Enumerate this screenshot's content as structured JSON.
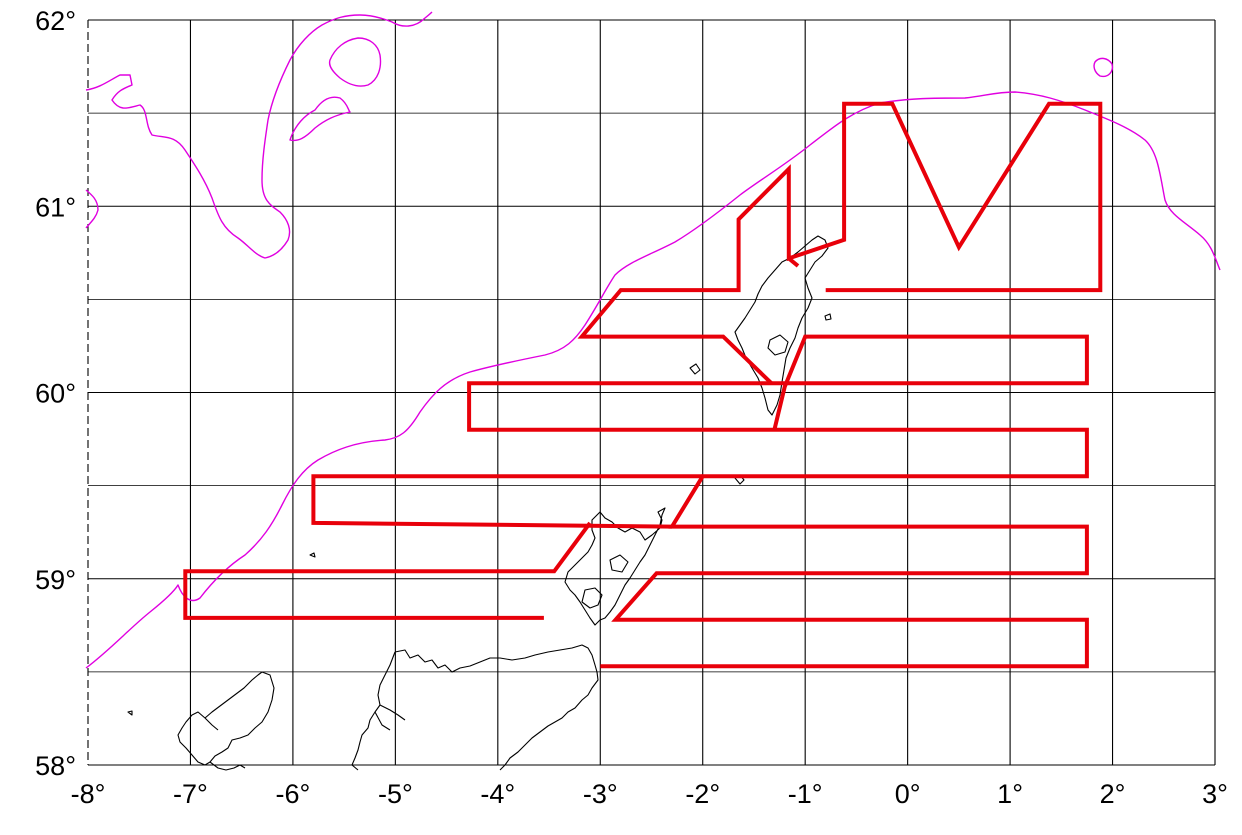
{
  "map": {
    "lon_range": [
      -8,
      3
    ],
    "lat_range": [
      58,
      62
    ],
    "lon_ticks": [
      {
        "value": -8,
        "label": "-8°"
      },
      {
        "value": -7,
        "label": "-7°"
      },
      {
        "value": -6,
        "label": "-6°"
      },
      {
        "value": -5,
        "label": "-5°"
      },
      {
        "value": -4,
        "label": "-4°"
      },
      {
        "value": -3,
        "label": "-3°"
      },
      {
        "value": -2,
        "label": "-2°"
      },
      {
        "value": -1,
        "label": "-1°"
      },
      {
        "value": 0,
        "label": "0°"
      },
      {
        "value": 1,
        "label": "1°"
      },
      {
        "value": 2,
        "label": "2°"
      },
      {
        "value": 3,
        "label": "3°"
      }
    ],
    "lat_ticks": [
      {
        "value": 62,
        "label": "62°"
      },
      {
        "value": 61,
        "label": "61°"
      },
      {
        "value": 60,
        "label": "60°"
      },
      {
        "value": 59,
        "label": "59°"
      },
      {
        "value": 58,
        "label": "58°"
      }
    ],
    "lat_minor": [
      58.5,
      59.5,
      60.5,
      61.5
    ],
    "colors": {
      "survey_track": "#e8000a",
      "shelf_contour": "#e000e0",
      "coastline": "#000000",
      "grid": "#000000"
    },
    "survey_track": [
      [
        -3.0,
        58.53
      ],
      [
        1.75,
        58.53
      ],
      [
        1.75,
        58.78
      ],
      [
        -2.85,
        58.78
      ],
      [
        -2.5,
        59.03
      ],
      [
        1.75,
        59.03
      ],
      [
        1.75,
        59.28
      ],
      [
        -2.3,
        59.28
      ],
      [
        -2.0,
        59.55
      ],
      [
        1.75,
        59.55
      ],
      [
        1.75,
        59.8
      ],
      [
        -1.3,
        59.8
      ],
      [
        -1.18,
        60.03
      ],
      [
        -1.0,
        60.3
      ],
      [
        1.75,
        60.3
      ],
      [
        1.75,
        60.05
      ],
      [
        -4.28,
        60.05
      ],
      [
        -4.28,
        59.8
      ],
      [
        -1.3,
        59.8
      ],
      [
        -2.0,
        59.55
      ],
      [
        -5.8,
        59.55
      ],
      [
        -5.8,
        59.3
      ],
      [
        -2.3,
        59.28
      ],
      [
        -3.0,
        58.53
      ]
    ],
    "survey_track_legs": [
      [
        [
          -3.0,
          58.53
        ],
        [
          1.75,
          58.53
        ],
        [
          1.75,
          58.78
        ],
        [
          -2.85,
          58.78
        ],
        [
          -2.45,
          59.03
        ],
        [
          1.75,
          59.03
        ],
        [
          1.75,
          59.28
        ],
        [
          -2.3,
          59.28
        ],
        [
          -2.0,
          59.55
        ],
        [
          1.75,
          59.55
        ],
        [
          1.75,
          59.8
        ],
        [
          -1.3,
          59.8
        ],
        [
          -1.2,
          60.03
        ],
        [
          -1.0,
          60.3
        ],
        [
          1.75,
          60.3
        ],
        [
          1.75,
          60.05
        ],
        [
          -4.28,
          60.05
        ],
        [
          -4.28,
          59.8
        ],
        [
          -1.3,
          59.8
        ]
      ],
      [
        [
          -2.0,
          59.55
        ],
        [
          -5.8,
          59.55
        ],
        [
          -5.8,
          59.3
        ],
        [
          -2.3,
          59.28
        ]
      ],
      [
        [
          -3.1,
          59.3
        ],
        [
          -3.45,
          59.04
        ],
        [
          -7.05,
          59.04
        ],
        [
          -7.05,
          58.79
        ],
        [
          -3.55,
          58.79
        ]
      ],
      [
        [
          -1.33,
          60.05
        ],
        [
          -1.8,
          60.3
        ],
        [
          -3.18,
          60.3
        ],
        [
          -2.8,
          60.55
        ],
        [
          -1.65,
          60.55
        ],
        [
          -1.65,
          60.93
        ],
        [
          -1.16,
          61.2
        ],
        [
          -1.16,
          60.72
        ],
        [
          -0.62,
          60.82
        ],
        [
          -0.62,
          61.55
        ],
        [
          -0.15,
          61.55
        ],
        [
          0.5,
          60.78
        ],
        [
          1.38,
          61.55
        ],
        [
          1.88,
          61.55
        ],
        [
          1.88,
          60.55
        ],
        [
          -0.8,
          60.55
        ]
      ],
      [
        [
          -1.16,
          60.72
        ],
        [
          -1.07,
          60.68
        ]
      ]
    ]
  }
}
